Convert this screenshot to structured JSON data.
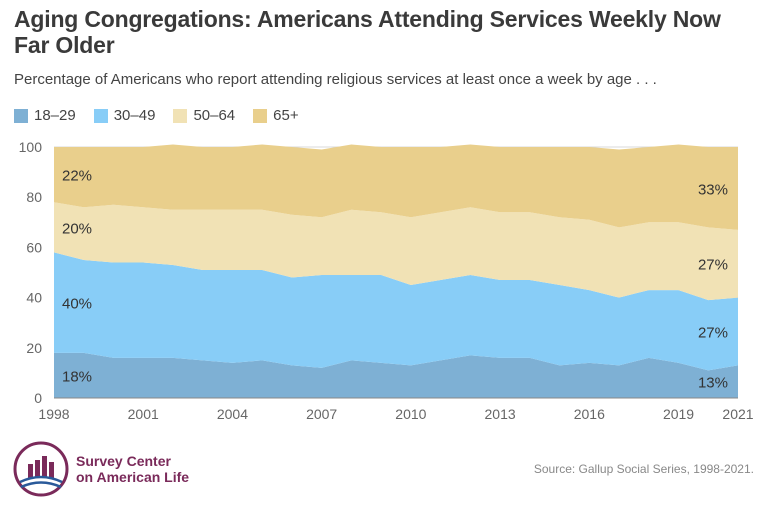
{
  "header": {
    "title": "Aging Congregations: Americans Attending Services Weekly Now Far Older",
    "subtitle": "Percentage of Americans who report attending religious services at least once a week by age . . ."
  },
  "footer": {
    "logo_line1": "Survey Center",
    "logo_line2": "on American Life",
    "source": "Source: Gallup Social Series, 1998-2021."
  },
  "chart_data": {
    "type": "area",
    "stacked": true,
    "x": [
      1998,
      1999,
      2000,
      2001,
      2002,
      2003,
      2004,
      2005,
      2006,
      2007,
      2008,
      2009,
      2010,
      2011,
      2012,
      2013,
      2014,
      2015,
      2016,
      2017,
      2018,
      2019,
      2020,
      2021
    ],
    "xticks": [
      "1998",
      "2001",
      "2004",
      "2007",
      "2010",
      "2013",
      "2016",
      "2019",
      "2021"
    ],
    "yticks": [
      "0",
      "20",
      "40",
      "60",
      "80",
      "100"
    ],
    "ylim": [
      0,
      100
    ],
    "xlim": [
      1998,
      2021
    ],
    "legend_position": "top-left",
    "grid": true,
    "series": [
      {
        "name": "18–29",
        "color": "#7eb0d4",
        "values": [
          18,
          18,
          16,
          16,
          16,
          15,
          14,
          15,
          13,
          12,
          15,
          14,
          13,
          15,
          17,
          16,
          16,
          13,
          14,
          13,
          16,
          14,
          11,
          13
        ]
      },
      {
        "name": "30–49",
        "color": "#88cdf7",
        "values": [
          40,
          37,
          38,
          38,
          37,
          36,
          37,
          36,
          35,
          37,
          34,
          35,
          32,
          32,
          32,
          31,
          31,
          32,
          29,
          27,
          27,
          29,
          28,
          27
        ]
      },
      {
        "name": "50–64",
        "color": "#f1e2b5",
        "values": [
          20,
          21,
          23,
          22,
          22,
          24,
          24,
          24,
          25,
          23,
          26,
          25,
          27,
          27,
          27,
          27,
          27,
          27,
          28,
          28,
          27,
          27,
          29,
          27
        ]
      },
      {
        "name": "65+",
        "color": "#e9cf8c",
        "values": [
          22,
          24,
          23,
          24,
          26,
          25,
          25,
          26,
          27,
          27,
          26,
          26,
          28,
          26,
          25,
          26,
          26,
          28,
          29,
          31,
          30,
          31,
          32,
          33
        ]
      }
    ],
    "annotations": [
      {
        "text": "22%",
        "x": 1998,
        "series": 3,
        "align": "left"
      },
      {
        "text": "20%",
        "x": 1998,
        "series": 2,
        "align": "left"
      },
      {
        "text": "40%",
        "x": 1998,
        "series": 1,
        "align": "left"
      },
      {
        "text": "18%",
        "x": 1998,
        "series": 0,
        "align": "left"
      },
      {
        "text": "33%",
        "x": 2021,
        "series": 3,
        "align": "right"
      },
      {
        "text": "27%",
        "x": 2021,
        "series": 2,
        "align": "right"
      },
      {
        "text": "27%",
        "x": 2021,
        "series": 1,
        "align": "right"
      },
      {
        "text": "13%",
        "x": 2021,
        "series": 0,
        "align": "right"
      }
    ]
  }
}
